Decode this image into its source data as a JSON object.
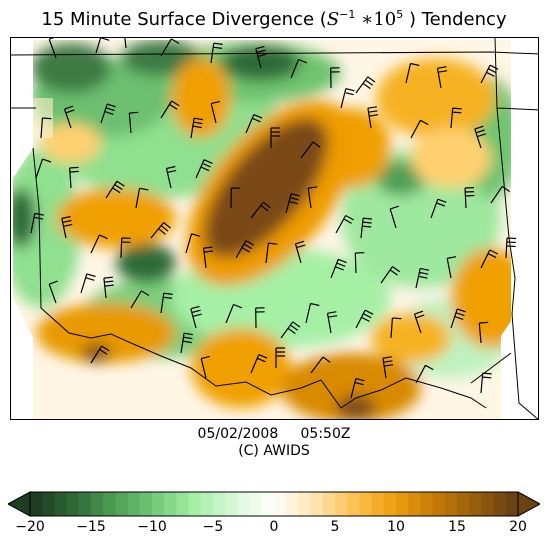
{
  "title_prefix": "15 Minute Surface Divergence (",
  "title_unit_base": "S",
  "title_unit_exp": "−1",
  "title_mult": " ∗10",
  "title_mult_exp": "5",
  "title_suffix": " ) Tendency",
  "date": "05/02/2008",
  "time": "05:50Z",
  "credit": "(C) AWIDS",
  "colors": {
    "neg_strong": "#1f4a2a",
    "neg_mid": "#4fa35a",
    "neg_light": "#a6f0a6",
    "neutral": "#ffffff",
    "pos_light": "#ffe7b8",
    "pos_mid": "#f0a000",
    "pos_strong": "#7a4a12"
  },
  "colorbar": {
    "ticks": [
      "−20",
      "−15",
      "−10",
      "−5",
      "0",
      "5",
      "10",
      "15",
      "20"
    ],
    "stops": [
      "#1f3d22",
      "#2f6a38",
      "#4f9f57",
      "#74c978",
      "#a6f0a6",
      "#d8f8d8",
      "#ffffff",
      "#ffe6b3",
      "#fdc253",
      "#eea010",
      "#c97d08",
      "#9a5f0c",
      "#6b4212"
    ]
  }
}
